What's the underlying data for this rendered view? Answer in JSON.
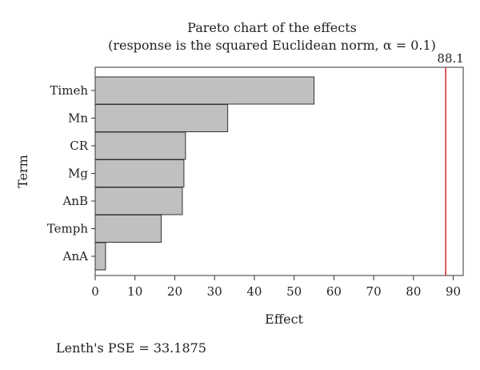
{
  "chart_data": {
    "type": "bar",
    "orientation": "horizontal",
    "title": "Pareto chart of the effects",
    "subtitle": "(response is the squared Euclidean norm, α = 0.1)",
    "xlabel": "Effect",
    "ylabel": "Term",
    "categories": [
      "Timeh",
      "Mn",
      "CR",
      "Mg",
      "AnB",
      "Temph",
      "AnA"
    ],
    "values": [
      55.0,
      33.3,
      22.7,
      22.3,
      21.9,
      16.6,
      2.6
    ],
    "xlim": [
      0,
      92.5
    ],
    "xticks": [
      0,
      10,
      20,
      30,
      40,
      50,
      60,
      70,
      80,
      90
    ],
    "grid": false,
    "reference_line": {
      "value": 88.1,
      "label": "88.1",
      "color": "#d62728"
    },
    "bar_color": "#c0c0c0",
    "footer": "Lenth's PSE = 33.1875"
  }
}
